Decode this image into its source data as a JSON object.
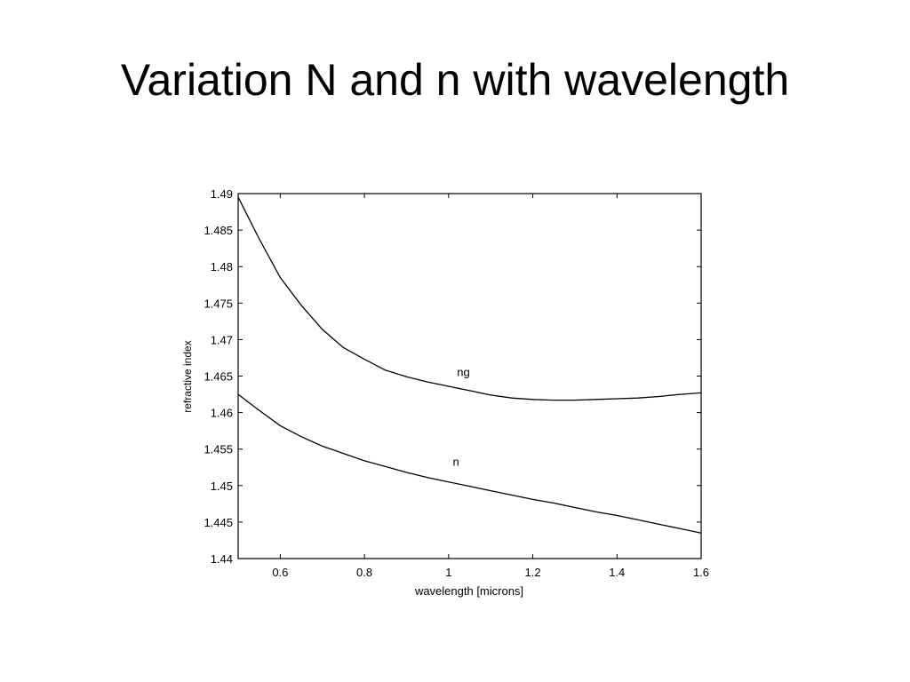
{
  "slide": {
    "title": "Variation N and n with wavelength"
  },
  "chart_data": {
    "type": "line",
    "title": "",
    "xlabel": "wavelength [microns]",
    "ylabel": "refractive index",
    "xlim": [
      0.5,
      1.6
    ],
    "ylim": [
      1.44,
      1.49
    ],
    "xticks": [
      "0.6",
      "0.8",
      "1",
      "1.2",
      "1.4",
      "1.6"
    ],
    "yticks": [
      "1.44",
      "1.445",
      "1.45",
      "1.455",
      "1.46",
      "1.465",
      "1.47",
      "1.475",
      "1.48",
      "1.485",
      "1.49"
    ],
    "grid": false,
    "series": [
      {
        "name": "ng",
        "label_at": {
          "x": 1.02,
          "y": 1.465
        },
        "x": [
          0.5,
          0.55,
          0.6,
          0.65,
          0.7,
          0.75,
          0.8,
          0.85,
          0.9,
          0.95,
          1.0,
          1.05,
          1.1,
          1.15,
          1.2,
          1.25,
          1.3,
          1.35,
          1.4,
          1.45,
          1.5,
          1.55,
          1.6
        ],
        "values": [
          1.4895,
          1.4838,
          1.4785,
          1.4747,
          1.4714,
          1.4689,
          1.4673,
          1.4658,
          1.4649,
          1.4642,
          1.4636,
          1.463,
          1.4624,
          1.462,
          1.4618,
          1.4617,
          1.4617,
          1.4618,
          1.4619,
          1.462,
          1.4622,
          1.4625,
          1.4627
        ]
      },
      {
        "name": "n",
        "label_at": {
          "x": 1.01,
          "y": 1.4527
        },
        "x": [
          0.5,
          0.55,
          0.6,
          0.65,
          0.7,
          0.75,
          0.8,
          0.85,
          0.9,
          0.95,
          1.0,
          1.05,
          1.1,
          1.15,
          1.2,
          1.25,
          1.3,
          1.35,
          1.4,
          1.45,
          1.5,
          1.55,
          1.6
        ],
        "values": [
          1.4625,
          1.4603,
          1.4582,
          1.4567,
          1.4554,
          1.4544,
          1.4534,
          1.4526,
          1.4518,
          1.4511,
          1.4505,
          1.4499,
          1.4493,
          1.4487,
          1.4481,
          1.4476,
          1.447,
          1.4464,
          1.4459,
          1.4453,
          1.4447,
          1.4441,
          1.4435
        ]
      }
    ]
  }
}
